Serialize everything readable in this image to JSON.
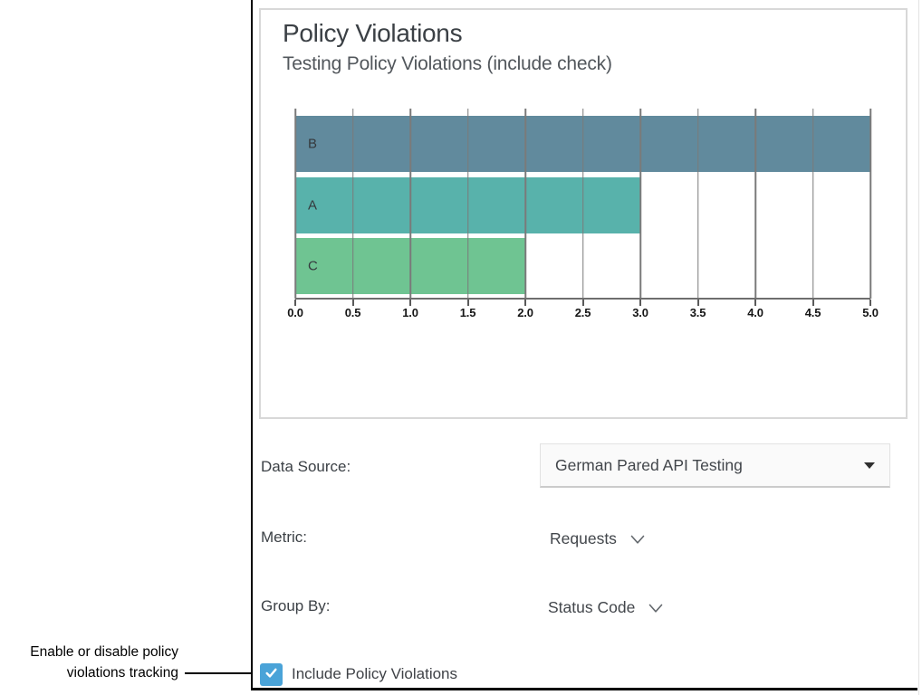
{
  "annotation": {
    "line1": "Enable or disable policy",
    "line2": "violations tracking"
  },
  "chart_data": {
    "type": "bar",
    "orientation": "horizontal",
    "title": "Policy Violations",
    "subtitle": "Testing Policy Violations (include check)",
    "categories": [
      "B",
      "A",
      "C"
    ],
    "values": [
      5.0,
      3.0,
      2.0
    ],
    "bar_colors": [
      "#618a9d",
      "#58b2ab",
      "#6fc492"
    ],
    "xlabel": "",
    "ylabel": "",
    "xlim": [
      0.0,
      5.0
    ],
    "xticks": [
      "0.0",
      "0.5",
      "1.0",
      "1.5",
      "2.0",
      "2.5",
      "3.0",
      "3.5",
      "4.0",
      "4.5",
      "5.0"
    ],
    "grid": true,
    "legend": false
  },
  "form": {
    "data_source": {
      "label": "Data Source:",
      "value": "German Pared API Testing"
    },
    "metric": {
      "label": "Metric:",
      "value": "Requests"
    },
    "group_by": {
      "label": "Group By:",
      "value": "Status Code"
    },
    "include_checkbox": {
      "label": "Include Policy Violations",
      "checked": true
    }
  },
  "icons": {
    "dropdown_caret": "triangle-down",
    "metric_chevron": "chevron-down",
    "group_by_chevron": "chevron-down",
    "checkbox_check": "checkmark"
  },
  "colors": {
    "checkbox_blue": "#4aa3d8",
    "card_border": "#d8d8d8",
    "grid_line": "#7a7a7a",
    "axis_line": "#6e6e6e",
    "crop_border": "#000000"
  }
}
